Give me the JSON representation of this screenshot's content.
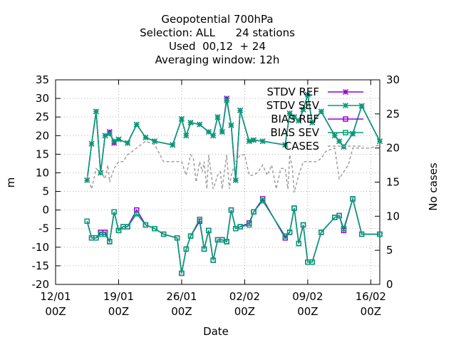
{
  "chart_data": {
    "type": "line",
    "title_lines": [
      "Geopotential 700hPa",
      "Selection: ALL      24 stations",
      "Used  00,12  + 24",
      "Averaging window: 12h"
    ],
    "xlabel": "Date",
    "ylabel": "m",
    "y2label": "No cases",
    "x_ticks": [
      {
        "day": 0,
        "line1": "12/01",
        "line2": "00Z"
      },
      {
        "day": 7,
        "line1": "19/01",
        "line2": "00Z"
      },
      {
        "day": 14,
        "line1": "26/01",
        "line2": "00Z"
      },
      {
        "day": 21,
        "line1": "02/02",
        "line2": "00Z"
      },
      {
        "day": 28,
        "line1": "09/02",
        "line2": "00Z"
      },
      {
        "day": 35,
        "line1": "16/02",
        "line2": "00Z"
      }
    ],
    "xlim": [
      0,
      36
    ],
    "ylim": [
      -20,
      35
    ],
    "y_ticks": [
      35,
      30,
      25,
      20,
      15,
      10,
      5,
      0,
      -5,
      -10,
      -15,
      -20
    ],
    "y2lim": [
      0,
      30
    ],
    "y2_ticks": [
      30,
      25,
      20,
      15,
      10,
      5,
      0
    ],
    "grid": true,
    "legend_position": "top-right",
    "legend": [
      "STDV REF",
      "STDV SEV",
      "BIAS REF",
      "BIAS SEV",
      "CASES"
    ],
    "colors": {
      "ref": "#9400d3",
      "sev": "#009e73",
      "cases": "#a0a0a0"
    },
    "series": [
      {
        "name": "STDV REF",
        "axis": "y",
        "marker": "star",
        "color": "#9400d3",
        "x": [
          3.5,
          4.0,
          4.5,
          5.0,
          5.5,
          6.0,
          6.5,
          7.0,
          8.0,
          9.0,
          10.0,
          11.0,
          13.0,
          14.0,
          14.5,
          15.0,
          16.0,
          17.0,
          17.5,
          18.0,
          18.5,
          19.0,
          19.5,
          20.0,
          20.5,
          21.5,
          22.0,
          23.0,
          25.5,
          26.0,
          26.5,
          27.0,
          27.5,
          28.0,
          28.5,
          29.5,
          31.0,
          31.5,
          32.0,
          33.0,
          34.0,
          36.0
        ],
        "y": [
          8.0,
          17.8,
          26.5,
          10.0,
          20.0,
          21.0,
          18.0,
          19.0,
          18.0,
          23.0,
          19.5,
          18.5,
          17.5,
          24.5,
          20.0,
          23.5,
          23.0,
          21.0,
          20.0,
          25.0,
          21.0,
          30.0,
          22.8,
          8.0,
          26.8,
          18.5,
          18.8,
          18.5,
          17.5,
          26.0,
          25.0,
          24.0,
          27.0,
          31.0,
          23.5,
          26.5,
          20.0,
          18.5,
          17.0,
          20.5,
          28.0,
          18.5
        ]
      },
      {
        "name": "STDV SEV",
        "axis": "y",
        "marker": "star",
        "color": "#009e73",
        "x": [
          3.5,
          4.0,
          4.5,
          5.0,
          5.5,
          6.0,
          6.5,
          7.0,
          8.0,
          9.0,
          10.0,
          11.0,
          13.0,
          14.0,
          14.5,
          15.0,
          16.0,
          17.0,
          17.5,
          18.0,
          18.5,
          19.0,
          19.5,
          20.0,
          20.5,
          21.5,
          22.0,
          23.0,
          25.5,
          26.0,
          26.5,
          27.0,
          27.5,
          28.0,
          28.5,
          29.5,
          31.0,
          31.5,
          32.0,
          33.0,
          34.0,
          36.0
        ],
        "y": [
          8.0,
          17.8,
          26.5,
          10.0,
          20.0,
          20.5,
          18.5,
          19.0,
          18.0,
          23.0,
          19.5,
          18.5,
          17.5,
          24.5,
          20.0,
          23.5,
          23.0,
          21.0,
          20.0,
          25.0,
          21.0,
          29.5,
          22.8,
          8.0,
          26.8,
          18.5,
          18.8,
          18.5,
          17.5,
          26.0,
          25.0,
          24.0,
          27.0,
          31.0,
          23.5,
          26.5,
          20.0,
          18.5,
          17.0,
          20.5,
          28.0,
          18.5
        ]
      },
      {
        "name": "BIAS REF",
        "axis": "y",
        "marker": "square",
        "color": "#9400d3",
        "x": [
          3.5,
          4.0,
          4.5,
          5.0,
          5.5,
          6.0,
          6.5,
          7.0,
          7.5,
          8.0,
          9.0,
          10.0,
          11.0,
          12.0,
          13.5,
          14.0,
          14.5,
          15.0,
          16.0,
          16.5,
          17.0,
          17.5,
          18.0,
          18.5,
          19.0,
          19.5,
          20.0,
          20.5,
          21.5,
          22.0,
          23.0,
          25.5,
          26.0,
          26.5,
          27.0,
          27.5,
          28.0,
          28.5,
          29.5,
          31.0,
          31.5,
          32.0,
          33.0,
          34.0,
          36.0
        ],
        "y": [
          -3.0,
          -7.5,
          -7.5,
          -6.0,
          -6.0,
          -8.5,
          -0.5,
          -5.5,
          -4.5,
          -4.5,
          0.0,
          -4.0,
          -5.0,
          -6.5,
          -7.5,
          -17.0,
          -10.5,
          -7.0,
          -3.0,
          -10.5,
          -5.5,
          -13.5,
          -8.0,
          -8.0,
          -8.5,
          0.0,
          -5.0,
          -4.5,
          -3.5,
          -0.5,
          3.0,
          -7.5,
          -6.0,
          0.5,
          -9.0,
          -4.0,
          -14.0,
          -14.0,
          -6.0,
          -2.0,
          -1.5,
          -5.5,
          3.0,
          -6.5,
          -6.5
        ]
      },
      {
        "name": "BIAS SEV",
        "axis": "y",
        "marker": "square",
        "color": "#009e73",
        "x": [
          3.5,
          4.0,
          4.5,
          5.0,
          5.5,
          6.0,
          6.5,
          7.0,
          7.5,
          8.0,
          9.0,
          10.0,
          11.0,
          12.0,
          13.5,
          14.0,
          14.5,
          15.0,
          16.0,
          16.5,
          17.0,
          17.5,
          18.0,
          18.5,
          19.0,
          19.5,
          20.0,
          20.5,
          21.5,
          22.0,
          23.0,
          25.5,
          26.0,
          26.5,
          27.0,
          27.5,
          28.0,
          28.5,
          29.5,
          31.0,
          31.5,
          32.0,
          33.0,
          34.0,
          36.0
        ],
        "y": [
          -3.0,
          -7.5,
          -7.5,
          -6.5,
          -6.5,
          -8.5,
          -0.5,
          -5.5,
          -4.5,
          -4.5,
          -1.0,
          -4.0,
          -5.0,
          -6.5,
          -7.5,
          -17.0,
          -10.5,
          -7.0,
          -2.5,
          -10.5,
          -5.5,
          -13.5,
          -8.0,
          -8.0,
          -8.5,
          0.0,
          -5.0,
          -4.5,
          -4.0,
          -0.5,
          2.5,
          -7.0,
          -6.0,
          0.5,
          -9.0,
          -4.0,
          -14.0,
          -14.0,
          -6.0,
          -2.0,
          -1.5,
          -5.0,
          3.0,
          -6.5,
          -6.5
        ]
      },
      {
        "name": "CASES",
        "axis": "y2",
        "marker": "none",
        "color": "#a0a0a0",
        "dashed": true,
        "x": [
          3.5,
          4.0,
          4.5,
          5.0,
          5.5,
          5.8,
          6.0,
          6.5,
          7.0,
          7.5,
          8.0,
          9.0,
          10.0,
          11.0,
          12.0,
          13.0,
          13.5,
          14.0,
          14.5,
          15.0,
          15.3,
          15.6,
          16.0,
          16.3,
          16.5,
          16.8,
          17.0,
          17.5,
          18.0,
          18.3,
          18.5,
          18.8,
          19.0,
          19.3,
          19.5,
          20.0,
          20.5,
          21.0,
          21.5,
          22.0,
          22.5,
          23.0,
          23.5,
          24.0,
          24.5,
          25.0,
          25.5,
          25.8,
          26.0,
          26.3,
          26.5,
          27.0,
          27.5,
          28.0,
          28.5,
          29.0,
          29.5,
          30.0,
          31.0,
          31.5,
          32.0,
          32.5,
          33.0,
          34.0,
          35.0,
          36.0
        ],
        "y": [
          16.0,
          14.0,
          17.0,
          16.5,
          15.5,
          17.5,
          15.0,
          17.0,
          18.0,
          18.0,
          19.0,
          20.0,
          21.0,
          20.5,
          18.0,
          18.0,
          18.0,
          18.0,
          16.0,
          19.0,
          18.5,
          15.0,
          18.0,
          16.5,
          18.0,
          14.0,
          19.0,
          14.0,
          16.0,
          16.5,
          14.0,
          17.0,
          19.0,
          14.0,
          16.0,
          18.0,
          19.0,
          19.0,
          16.0,
          16.0,
          16.5,
          17.5,
          16.0,
          17.5,
          14.0,
          17.0,
          17.0,
          14.0,
          19.0,
          17.0,
          13.5,
          16.0,
          18.0,
          18.0,
          18.0,
          18.0,
          18.5,
          19.5,
          20.0,
          15.5,
          16.5,
          17.5,
          20.0,
          20.0,
          20.0,
          20.5
        ]
      }
    ]
  }
}
